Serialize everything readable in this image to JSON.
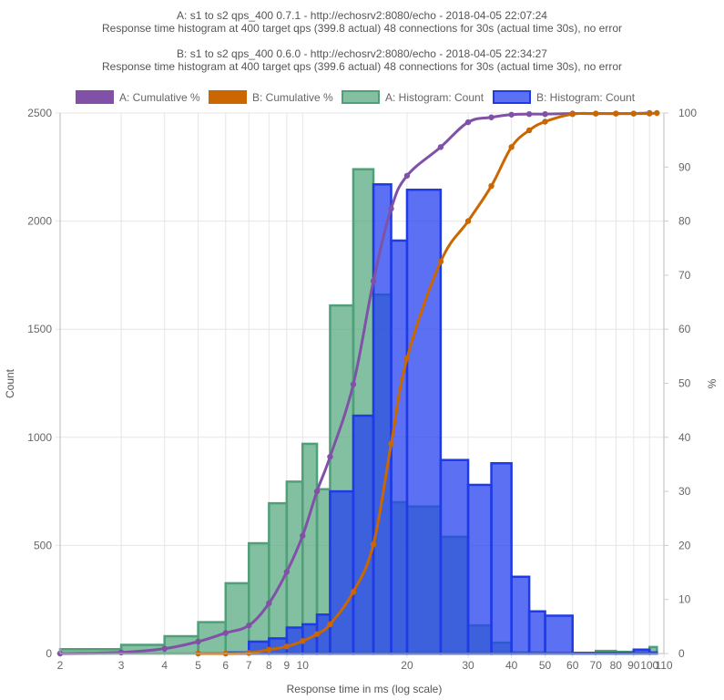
{
  "chart_data": {
    "type": "histogram-with-cumulative-lines",
    "title_lines": [
      "A: s1 to s2 qps_400 0.7.1 - http://echosrv2:8080/echo - 2018-04-05 22:07:24",
      "Response time histogram at 400 target qps (399.8 actual) 48 connections for 30s (actual time 30s), no error",
      "",
      "B: s1 to s2 qps_400 0.6.0 - http://echosrv2:8080/echo - 2018-04-05 22:34:27",
      "Response time histogram at 400 target qps (399.6 actual) 48 connections for 30s (actual time 30s), no error"
    ],
    "xlabel": "Response time in ms (log scale)",
    "ylabel_left": "Count",
    "ylabel_right": "%",
    "x_scale": "log",
    "xlim": [
      2,
      110
    ],
    "ylim_left": [
      0,
      2500
    ],
    "ylim_right": [
      0,
      100
    ],
    "x_ticks": [
      "2",
      "3",
      "4",
      "5",
      "6",
      "7",
      "8",
      "9",
      "10",
      "20",
      "30",
      "40",
      "50",
      "60",
      "70",
      "80",
      "90",
      "100",
      "110"
    ],
    "x_tick_values": [
      2,
      3,
      4,
      5,
      6,
      7,
      8,
      9,
      10,
      20,
      30,
      40,
      50,
      60,
      70,
      80,
      90,
      100,
      110
    ],
    "y_ticks_left": [
      "0",
      "500",
      "1000",
      "1500",
      "2000",
      "2500"
    ],
    "y_ticks_right": [
      "0",
      "10",
      "20",
      "30",
      "40",
      "50",
      "60",
      "70",
      "80",
      "90",
      "100"
    ],
    "legend_position": "top",
    "grid": true,
    "colors": {
      "a_cumulative": "#8151a7",
      "b_cumulative": "#cb6700",
      "a_histogram_fill": "#5aaa82",
      "a_histogram_stroke": "#4f9f77",
      "b_histogram_fill": "#2540f0",
      "b_histogram_stroke": "#1f3be6"
    },
    "series": [
      {
        "name": "A: Cumulative %",
        "kind": "line",
        "axis": "right",
        "points": [
          [
            2,
            0
          ],
          [
            3,
            0.2
          ],
          [
            4,
            0.9
          ],
          [
            5,
            2.2
          ],
          [
            6,
            3.8
          ],
          [
            7,
            5.2
          ],
          [
            8,
            9.3
          ],
          [
            9,
            15.1
          ],
          [
            10,
            21.8
          ],
          [
            11,
            30
          ],
          [
            12,
            36.4
          ],
          [
            14,
            49.8
          ],
          [
            16,
            68.9
          ],
          [
            18,
            82.3
          ],
          [
            20,
            88.4
          ],
          [
            25,
            93.7
          ],
          [
            30,
            98.3
          ],
          [
            35,
            99.2
          ],
          [
            40,
            99.7
          ],
          [
            45,
            99.8
          ],
          [
            50,
            99.8
          ],
          [
            60,
            99.9
          ],
          [
            70,
            99.9
          ],
          [
            80,
            99.9
          ],
          [
            90,
            99.9
          ],
          [
            100,
            100
          ]
        ]
      },
      {
        "name": "B: Cumulative %",
        "kind": "line",
        "axis": "right",
        "points": [
          [
            5,
            0
          ],
          [
            6,
            0
          ],
          [
            7,
            0.1
          ],
          [
            8,
            0.7
          ],
          [
            9,
            1.3
          ],
          [
            10,
            2.3
          ],
          [
            11,
            3.6
          ],
          [
            12,
            5.4
          ],
          [
            14,
            11.4
          ],
          [
            16,
            20.2
          ],
          [
            18,
            38.8
          ],
          [
            20,
            54.6
          ],
          [
            25,
            72.5
          ],
          [
            30,
            80
          ],
          [
            35,
            86.5
          ],
          [
            40,
            93.7
          ],
          [
            45,
            96.8
          ],
          [
            50,
            98.4
          ],
          [
            60,
            99.8
          ],
          [
            70,
            99.9
          ],
          [
            80,
            99.9
          ],
          [
            90,
            99.9
          ],
          [
            100,
            99.9
          ],
          [
            105,
            100
          ]
        ]
      },
      {
        "name": "A: Histogram: Count",
        "kind": "histogram",
        "axis": "left",
        "bins": [
          [
            2,
            3,
            20
          ],
          [
            3,
            4,
            40
          ],
          [
            4,
            5,
            80
          ],
          [
            5,
            6,
            145
          ],
          [
            6,
            7,
            325
          ],
          [
            7,
            8,
            510
          ],
          [
            8,
            9,
            695
          ],
          [
            9,
            10,
            795
          ],
          [
            10,
            11,
            970
          ],
          [
            11,
            12,
            760
          ],
          [
            12,
            14,
            1610
          ],
          [
            14,
            16,
            2240
          ],
          [
            16,
            18,
            1660
          ],
          [
            18,
            20,
            700
          ],
          [
            20,
            25,
            680
          ],
          [
            25,
            30,
            540
          ],
          [
            30,
            35,
            130
          ],
          [
            35,
            40,
            50
          ],
          [
            40,
            50,
            5
          ],
          [
            50,
            60,
            3
          ],
          [
            60,
            70,
            2
          ],
          [
            70,
            80,
            12
          ],
          [
            80,
            90,
            8
          ],
          [
            90,
            100,
            5
          ],
          [
            100,
            105,
            30
          ]
        ]
      },
      {
        "name": "B: Histogram: Count",
        "kind": "histogram",
        "axis": "left",
        "bins": [
          [
            6,
            7,
            5
          ],
          [
            7,
            8,
            55
          ],
          [
            8,
            9,
            70
          ],
          [
            9,
            10,
            120
          ],
          [
            10,
            11,
            135
          ],
          [
            11,
            12,
            180
          ],
          [
            12,
            14,
            750
          ],
          [
            14,
            16,
            1100
          ],
          [
            16,
            18,
            2170
          ],
          [
            18,
            20,
            1910
          ],
          [
            20,
            25,
            2145
          ],
          [
            25,
            30,
            895
          ],
          [
            30,
            35,
            780
          ],
          [
            35,
            40,
            880
          ],
          [
            40,
            45,
            355
          ],
          [
            45,
            50,
            195
          ],
          [
            50,
            60,
            175
          ],
          [
            60,
            70,
            3
          ],
          [
            70,
            80,
            3
          ],
          [
            80,
            90,
            3
          ],
          [
            90,
            100,
            18
          ],
          [
            100,
            105,
            5
          ]
        ]
      }
    ]
  }
}
